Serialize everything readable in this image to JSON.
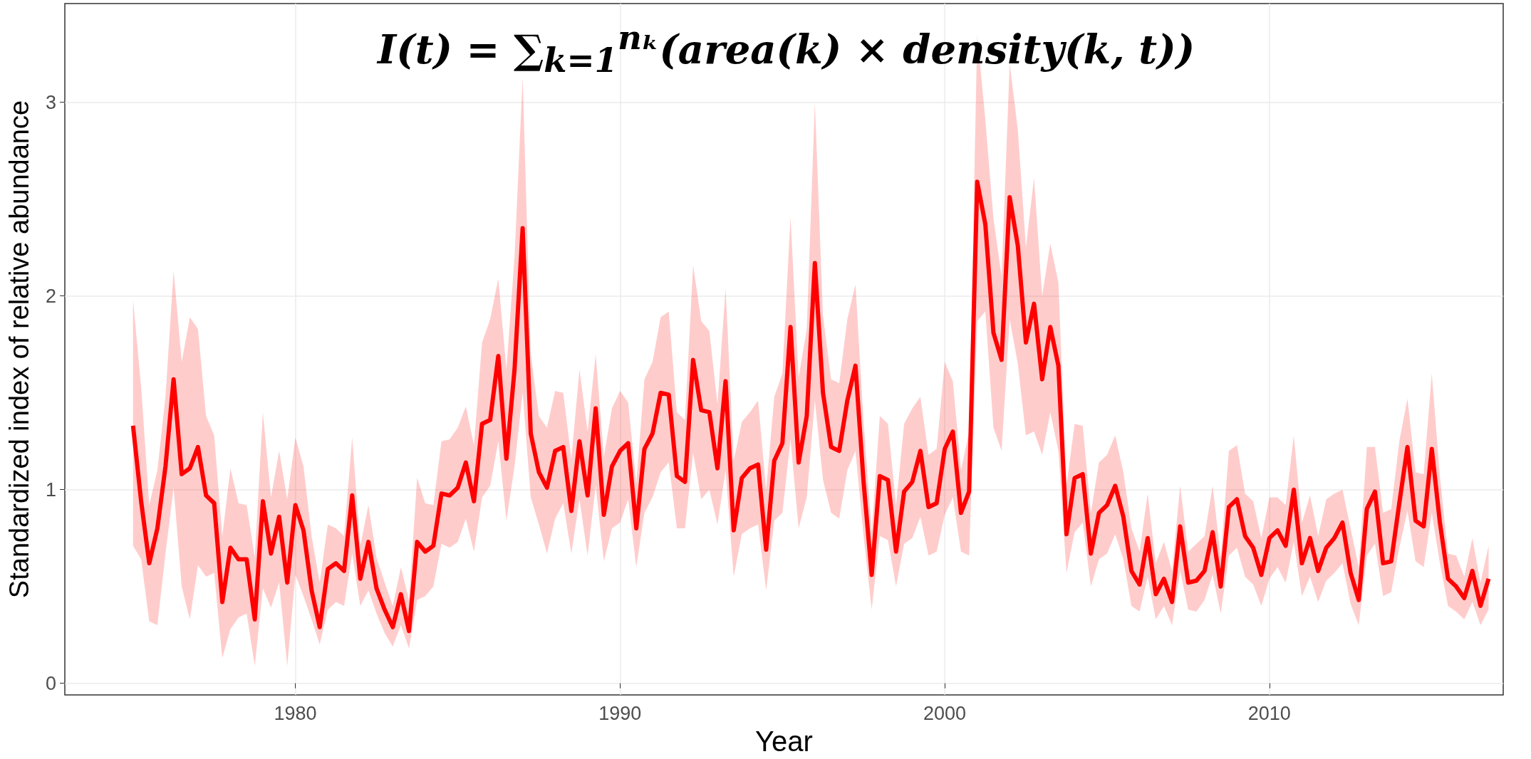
{
  "chart_data": {
    "type": "line",
    "title": "I(t) = ∑$_{k=1}$$^{nₖ}$(area(k) × density(k, t))",
    "xlabel": "Year",
    "ylabel": "Standardized index of relative abundance",
    "x": [
      1975,
      1975.25,
      1975.5,
      1975.75,
      1976,
      1976.25,
      1976.5,
      1976.75,
      1977,
      1977.25,
      1977.5,
      1977.75,
      1978,
      1978.25,
      1978.5,
      1978.75,
      1979,
      1979.25,
      1979.5,
      1979.75,
      1980,
      1980.25,
      1980.5,
      1980.75,
      1981,
      1981.25,
      1981.5,
      1981.75,
      1982,
      1982.25,
      1982.5,
      1982.75,
      1983,
      1983.25,
      1983.5,
      1983.75,
      1984,
      1984.25,
      1984.5,
      1984.75,
      1985,
      1985.25,
      1985.5,
      1985.75,
      1986,
      1986.25,
      1986.5,
      1986.75,
      1987,
      1987.25,
      1987.5,
      1987.75,
      1988,
      1988.25,
      1988.5,
      1988.75,
      1989,
      1989.25,
      1989.5,
      1989.75,
      1990,
      1990.25,
      1990.5,
      1990.75,
      1991,
      1991.25,
      1991.5,
      1991.75,
      1992,
      1992.25,
      1992.5,
      1992.75,
      1993,
      1993.25,
      1993.5,
      1993.75,
      1994,
      1994.25,
      1994.5,
      1994.75,
      1995,
      1995.25,
      1995.5,
      1995.75,
      1996,
      1996.25,
      1996.5,
      1996.75,
      1997,
      1997.25,
      1997.5,
      1997.75,
      1998,
      1998.25,
      1998.5,
      1998.75,
      1999,
      1999.25,
      1999.5,
      1999.75,
      2000,
      2000.25,
      2000.5,
      2000.75,
      2001,
      2001.25,
      2001.5,
      2001.75,
      2002,
      2002.25,
      2002.5,
      2002.75,
      2003,
      2003.25,
      2003.5,
      2003.75,
      2004,
      2004.25,
      2004.5,
      2004.75,
      2005,
      2005.25,
      2005.5,
      2005.75,
      2006,
      2006.25,
      2006.5,
      2006.75,
      2007,
      2007.25,
      2007.5,
      2007.75,
      2008,
      2008.25,
      2008.5,
      2008.75,
      2009,
      2009.25,
      2009.5,
      2009.75,
      2010,
      2010.25,
      2010.5,
      2010.75,
      2011,
      2011.25,
      2011.5,
      2011.75,
      2012,
      2012.25,
      2012.5,
      2012.75,
      2013,
      2013.25,
      2013.5,
      2013.75,
      2014,
      2014.25,
      2014.5,
      2014.75,
      2015,
      2015.25,
      2015.5,
      2015.75,
      2016,
      2016.25,
      2016.5,
      2016.75
    ],
    "series": [
      {
        "color": "#ff0000",
        "values": [
          1.33,
          0.94,
          0.62,
          0.8,
          1.12,
          1.57,
          1.08,
          1.11,
          1.22,
          0.97,
          0.93,
          0.42,
          0.7,
          0.64,
          0.64,
          0.33,
          0.94,
          0.67,
          0.86,
          0.52,
          0.92,
          0.79,
          0.48,
          0.29,
          0.59,
          0.62,
          0.58,
          0.97,
          0.54,
          0.73,
          0.49,
          0.38,
          0.29,
          0.46,
          0.27,
          0.73,
          0.68,
          0.71,
          0.98,
          0.97,
          1.01,
          1.14,
          0.94,
          1.34,
          1.36,
          1.69,
          1.16,
          1.62,
          2.35,
          1.29,
          1.09,
          1.01,
          1.2,
          1.22,
          0.89,
          1.25,
          0.97,
          1.42,
          0.87,
          1.12,
          1.2,
          1.24,
          0.8,
          1.21,
          1.29,
          1.5,
          1.49,
          1.07,
          1.04,
          1.67,
          1.41,
          1.4,
          1.11,
          1.56,
          0.79,
          1.06,
          1.11,
          1.13,
          0.69,
          1.15,
          1.24,
          1.84,
          1.14,
          1.38,
          2.17,
          1.5,
          1.22,
          1.2,
          1.46,
          1.64,
          1.04,
          0.56,
          1.07,
          1.05,
          0.68,
          0.99,
          1.04,
          1.2,
          0.91,
          0.93,
          1.21,
          1.3,
          0.88,
          0.99,
          2.59,
          2.37,
          1.81,
          1.67,
          2.51,
          2.26,
          1.76,
          1.96,
          1.57,
          1.84,
          1.64,
          0.77,
          1.06,
          1.08,
          0.67,
          0.88,
          0.92,
          1.02,
          0.86,
          0.58,
          0.51,
          0.75,
          0.46,
          0.54,
          0.42,
          0.81,
          0.52,
          0.53,
          0.58,
          0.78,
          0.5,
          0.91,
          0.95,
          0.76,
          0.7,
          0.56,
          0.75,
          0.79,
          0.71,
          1.0,
          0.62,
          0.75,
          0.58,
          0.7,
          0.75,
          0.83,
          0.57,
          0.43,
          0.9,
          0.99,
          0.62,
          0.63,
          0.93,
          1.22,
          0.84,
          0.81,
          1.21,
          0.83,
          0.54,
          0.5,
          0.44,
          0.58,
          0.4,
          0.54
        ],
        "lower": [
          0.71,
          0.64,
          0.32,
          0.3,
          0.67,
          1.01,
          0.5,
          0.33,
          0.61,
          0.55,
          0.57,
          0.13,
          0.28,
          0.34,
          0.36,
          0.09,
          0.49,
          0.39,
          0.52,
          0.09,
          0.56,
          0.45,
          0.33,
          0.2,
          0.38,
          0.42,
          0.4,
          0.67,
          0.4,
          0.48,
          0.36,
          0.26,
          0.19,
          0.3,
          0.18,
          0.43,
          0.45,
          0.5,
          0.72,
          0.7,
          0.73,
          0.85,
          0.68,
          0.96,
          1.02,
          1.25,
          0.84,
          1.12,
          1.5,
          0.96,
          0.82,
          0.67,
          0.85,
          0.93,
          0.67,
          0.95,
          0.66,
          1.02,
          0.63,
          0.8,
          0.83,
          0.95,
          0.6,
          0.88,
          0.96,
          1.09,
          1.14,
          0.8,
          0.8,
          1.19,
          0.95,
          1.0,
          0.82,
          1.1,
          0.55,
          0.77,
          0.8,
          0.82,
          0.48,
          0.84,
          0.88,
          1.26,
          0.8,
          0.96,
          1.46,
          1.05,
          0.88,
          0.85,
          1.1,
          1.2,
          0.76,
          0.38,
          0.76,
          0.74,
          0.5,
          0.72,
          0.75,
          0.86,
          0.66,
          0.68,
          0.87,
          0.96,
          0.68,
          0.66,
          1.87,
          1.92,
          1.32,
          1.2,
          1.88,
          1.65,
          1.28,
          1.3,
          1.18,
          1.4,
          1.2,
          0.57,
          0.78,
          0.83,
          0.5,
          0.64,
          0.67,
          0.77,
          0.64,
          0.4,
          0.37,
          0.55,
          0.33,
          0.4,
          0.3,
          0.58,
          0.38,
          0.37,
          0.43,
          0.56,
          0.36,
          0.66,
          0.7,
          0.55,
          0.51,
          0.4,
          0.54,
          0.6,
          0.52,
          0.73,
          0.45,
          0.55,
          0.42,
          0.53,
          0.57,
          0.62,
          0.41,
          0.3,
          0.66,
          0.72,
          0.45,
          0.47,
          0.7,
          0.89,
          0.63,
          0.6,
          0.88,
          0.62,
          0.4,
          0.37,
          0.33,
          0.42,
          0.3,
          0.38
        ],
        "upper": [
          1.98,
          1.53,
          0.92,
          1.1,
          1.48,
          2.13,
          1.66,
          1.89,
          1.83,
          1.38,
          1.28,
          0.76,
          1.11,
          0.93,
          0.92,
          0.65,
          1.4,
          0.96,
          1.2,
          0.95,
          1.27,
          1.12,
          0.76,
          0.52,
          0.82,
          0.8,
          0.76,
          1.27,
          0.71,
          0.92,
          0.65,
          0.52,
          0.4,
          0.6,
          0.43,
          1.06,
          0.93,
          0.92,
          1.25,
          1.26,
          1.32,
          1.43,
          1.23,
          1.76,
          1.88,
          2.09,
          1.62,
          2.2,
          3.13,
          1.7,
          1.38,
          1.32,
          1.51,
          1.5,
          1.16,
          1.62,
          1.3,
          1.7,
          1.17,
          1.42,
          1.51,
          1.45,
          1.03,
          1.57,
          1.66,
          1.89,
          1.92,
          1.4,
          1.36,
          2.16,
          1.87,
          1.82,
          1.44,
          2.04,
          1.15,
          1.35,
          1.4,
          1.46,
          1.0,
          1.48,
          1.6,
          2.41,
          1.58,
          1.83,
          3.0,
          1.9,
          1.57,
          1.55,
          1.88,
          2.06,
          1.35,
          0.78,
          1.38,
          1.34,
          0.92,
          1.34,
          1.42,
          1.48,
          1.18,
          1.21,
          1.66,
          1.56,
          1.1,
          1.3,
          3.35,
          2.91,
          2.4,
          2.1,
          3.2,
          2.86,
          2.25,
          2.61,
          2.0,
          2.27,
          2.07,
          1.02,
          1.34,
          1.33,
          0.88,
          1.14,
          1.18,
          1.28,
          1.09,
          0.8,
          0.68,
          0.98,
          0.62,
          0.73,
          0.58,
          1.02,
          0.68,
          0.72,
          0.76,
          1.02,
          0.65,
          1.2,
          1.23,
          0.98,
          0.94,
          0.75,
          0.96,
          0.96,
          0.92,
          1.28,
          0.83,
          0.97,
          0.76,
          0.95,
          0.98,
          1.0,
          0.8,
          0.6,
          1.22,
          1.22,
          0.88,
          0.9,
          1.25,
          1.47,
          1.09,
          1.08,
          1.6,
          1.07,
          0.67,
          0.66,
          0.55,
          0.75,
          0.52,
          0.71
        ]
      }
    ],
    "xlim": [
      1972.9,
      2017.2
    ],
    "xticks": [
      1980,
      1990,
      2000,
      2010
    ],
    "ylim": [
      -0.06,
      3.51
    ],
    "yticks": [
      0,
      1,
      2,
      3
    ],
    "grid": true
  }
}
